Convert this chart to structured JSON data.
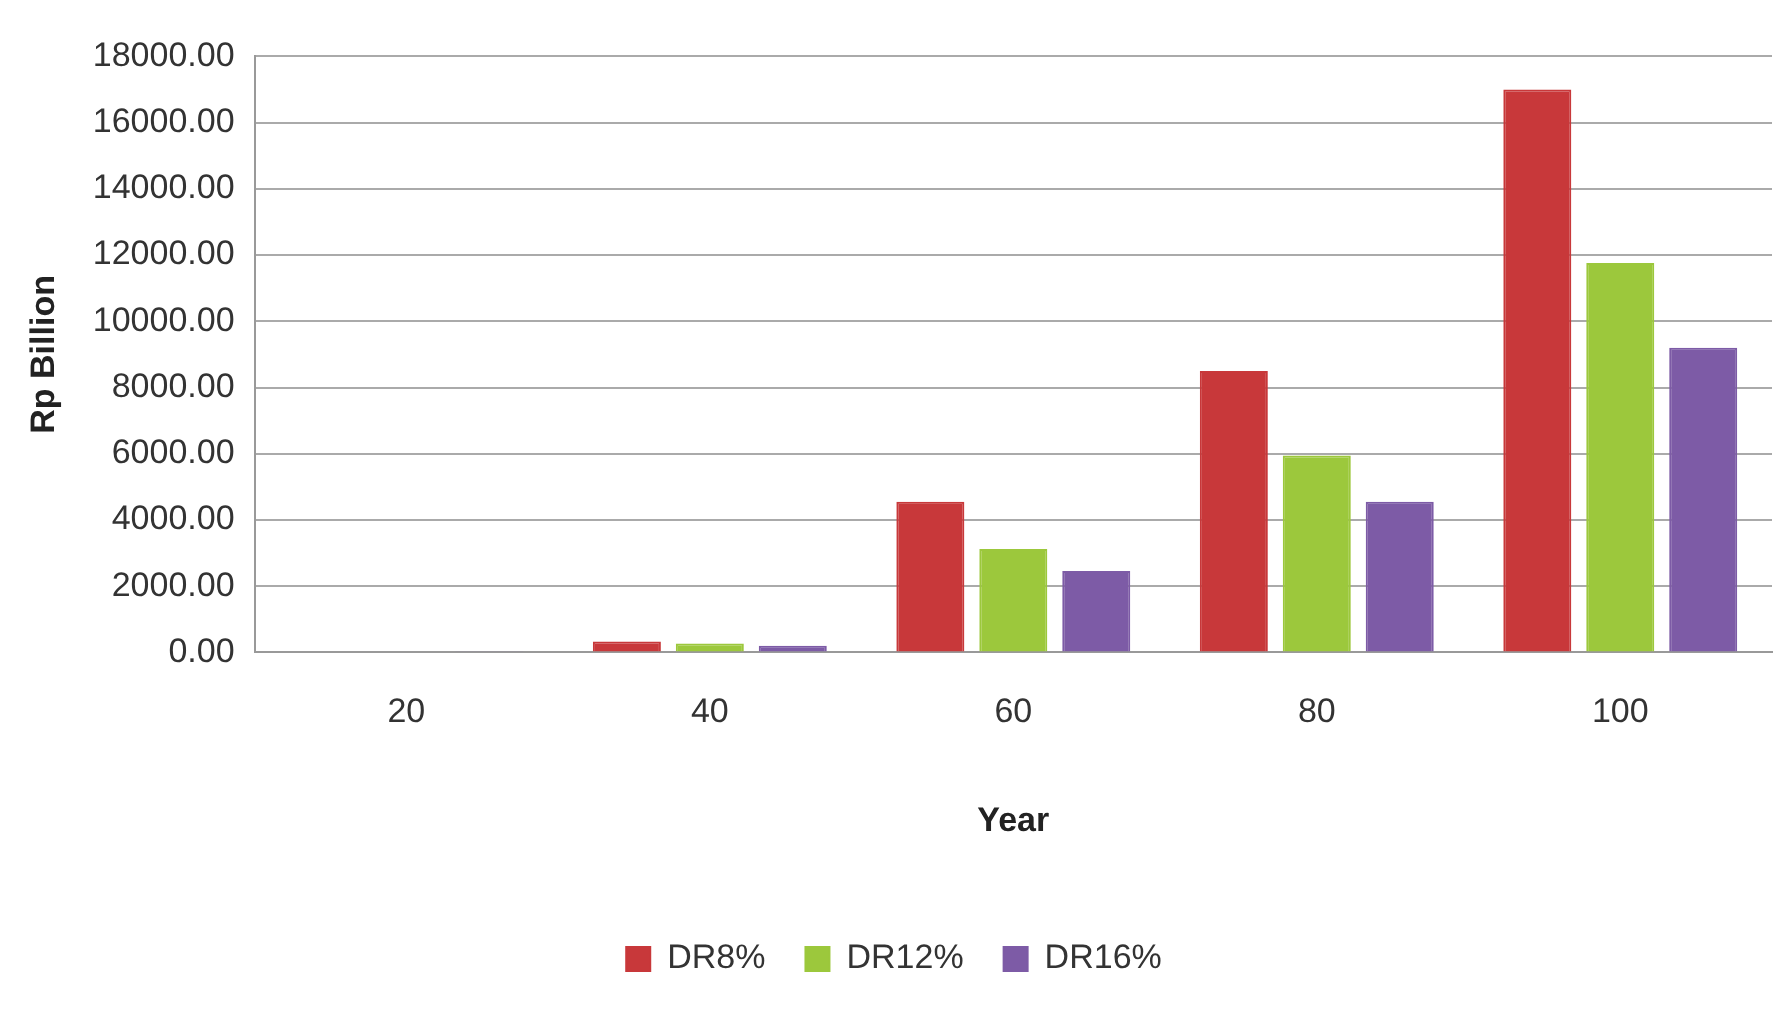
{
  "chart_data": {
    "type": "bar",
    "xlabel": "Year",
    "ylabel": "Rp Billion",
    "categories": [
      "20",
      "40",
      "60",
      "80",
      "100"
    ],
    "series": [
      {
        "name": "DR8%",
        "color": "#c8383a",
        "values": [
          30,
          330,
          4550,
          8500,
          17000
        ]
      },
      {
        "name": "DR12%",
        "color": "#9cc83c",
        "values": [
          30,
          270,
          3120,
          5950,
          11760
        ]
      },
      {
        "name": "DR16%",
        "color": "#7d5ba6",
        "values": [
          20,
          200,
          2460,
          4550,
          9200
        ]
      }
    ],
    "ylim": [
      0,
      18000
    ],
    "yticks": [
      {
        "value": 0,
        "label": "0.00"
      },
      {
        "value": 2000,
        "label": "2000.00"
      },
      {
        "value": 4000,
        "label": "4000.00"
      },
      {
        "value": 6000,
        "label": "6000.00"
      },
      {
        "value": 8000,
        "label": "8000.00"
      },
      {
        "value": 10000,
        "label": "10000.00"
      },
      {
        "value": 12000,
        "label": "12000.00"
      },
      {
        "value": 14000,
        "label": "14000.00"
      },
      {
        "value": 16000,
        "label": "16000.00"
      },
      {
        "value": 18000,
        "label": "18000.00"
      }
    ],
    "grid": "y",
    "legend": "bottom"
  }
}
